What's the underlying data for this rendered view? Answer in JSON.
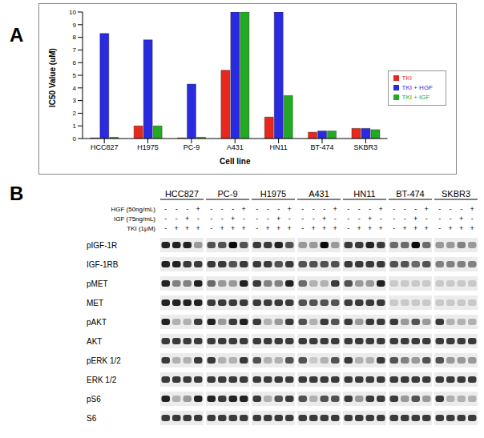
{
  "figure": {
    "panel_labels": [
      "A",
      "B"
    ]
  },
  "chart_data": {
    "type": "bar",
    "x_label": "Cell line",
    "y_label": "IC50 Value (uM)",
    "categories": [
      "HCC827",
      "H1975",
      "PC-9",
      "A431",
      "HN11",
      "BT-474",
      "SKBR3"
    ],
    "series": [
      {
        "name": "TKI",
        "color": "#e8281c",
        "values": [
          0.05,
          1.0,
          0.05,
          5.4,
          1.7,
          0.5,
          0.8
        ]
      },
      {
        "name": "TKI + HGF",
        "color": "#2a2ae0",
        "values": [
          8.3,
          7.8,
          4.3,
          10,
          10,
          0.6,
          0.8
        ]
      },
      {
        "name": "TKI + IGF",
        "color": "#22aa22",
        "values": [
          0.1,
          1.0,
          0.1,
          10,
          3.4,
          0.6,
          0.7
        ]
      }
    ],
    "ylim": [
      0,
      10
    ],
    "yticks": [
      0,
      1,
      2,
      3,
      4,
      5,
      6,
      7,
      8,
      9,
      10
    ],
    "grid": false,
    "legend": "right"
  },
  "blot": {
    "cell_lines": [
      "HCC827",
      "PC-9",
      "H1975",
      "A431",
      "HN11",
      "BT-474",
      "SKBR3"
    ],
    "treatments": [
      {
        "label": "HGF (50ng/mL)",
        "signs": [
          "-",
          "-",
          "-",
          "+"
        ]
      },
      {
        "label": "IGF (75ng/mL)",
        "signs": [
          "-",
          "-",
          "+",
          "-"
        ]
      },
      {
        "label": "TKI (1μM)",
        "signs": [
          "-",
          "+",
          "+",
          "+"
        ]
      }
    ],
    "intensity_scale": [
      0,
      9
    ],
    "rows": [
      {
        "protein": "pIGF-1R",
        "levels": [
          8,
          8,
          8,
          3,
          6,
          6,
          9,
          6,
          7,
          7,
          8,
          6,
          3,
          3,
          9,
          3,
          7,
          7,
          8,
          7,
          5,
          5,
          9,
          5,
          3,
          3,
          4,
          3
        ]
      },
      {
        "protein": "IGF-1RB",
        "levels": [
          8,
          8,
          7,
          7,
          7,
          7,
          6,
          7,
          7,
          7,
          6,
          7,
          6,
          6,
          6,
          6,
          7,
          7,
          7,
          7,
          6,
          6,
          5,
          6,
          4,
          4,
          4,
          4
        ]
      },
      {
        "protein": "pMET",
        "levels": [
          8,
          4,
          4,
          8,
          5,
          3,
          3,
          8,
          7,
          4,
          4,
          8,
          5,
          2,
          2,
          7,
          6,
          3,
          3,
          8,
          1,
          1,
          1,
          1,
          1,
          1,
          1,
          1
        ]
      },
      {
        "protein": "MET",
        "levels": [
          8,
          8,
          8,
          8,
          7,
          7,
          7,
          7,
          7,
          7,
          7,
          7,
          6,
          6,
          6,
          6,
          7,
          7,
          7,
          7,
          1,
          1,
          1,
          1,
          1,
          1,
          1,
          1
        ]
      },
      {
        "protein": "pAKT",
        "levels": [
          8,
          2,
          2,
          7,
          8,
          3,
          7,
          8,
          7,
          2,
          3,
          7,
          6,
          2,
          7,
          6,
          7,
          3,
          7,
          7,
          7,
          3,
          6,
          3,
          7,
          2,
          2,
          2
        ]
      },
      {
        "protein": "AKT",
        "levels": [
          7,
          7,
          7,
          7,
          7,
          7,
          7,
          7,
          7,
          7,
          7,
          7,
          7,
          7,
          7,
          7,
          7,
          7,
          7,
          7,
          7,
          7,
          7,
          7,
          7,
          7,
          7,
          7
        ]
      },
      {
        "protein": "pERK 1/2",
        "levels": [
          7,
          2,
          2,
          7,
          7,
          2,
          2,
          7,
          6,
          2,
          2,
          6,
          6,
          1,
          2,
          6,
          7,
          2,
          2,
          7,
          6,
          4,
          3,
          6,
          6,
          3,
          3,
          3
        ]
      },
      {
        "protein": "ERK 1/2",
        "levels": [
          7,
          7,
          7,
          7,
          7,
          7,
          7,
          7,
          7,
          7,
          7,
          7,
          7,
          7,
          7,
          7,
          7,
          7,
          7,
          7,
          7,
          7,
          7,
          7,
          7,
          7,
          7,
          7
        ]
      },
      {
        "protein": "pS6",
        "levels": [
          8,
          2,
          3,
          8,
          8,
          7,
          8,
          8,
          7,
          2,
          6,
          7,
          6,
          2,
          6,
          6,
          7,
          3,
          7,
          7,
          7,
          3,
          6,
          3,
          7,
          2,
          2,
          2
        ]
      },
      {
        "protein": "S6",
        "levels": [
          7,
          7,
          7,
          7,
          7,
          7,
          7,
          7,
          7,
          7,
          7,
          7,
          7,
          7,
          7,
          7,
          7,
          7,
          7,
          7,
          7,
          7,
          7,
          7,
          7,
          7,
          7,
          7
        ]
      }
    ]
  }
}
